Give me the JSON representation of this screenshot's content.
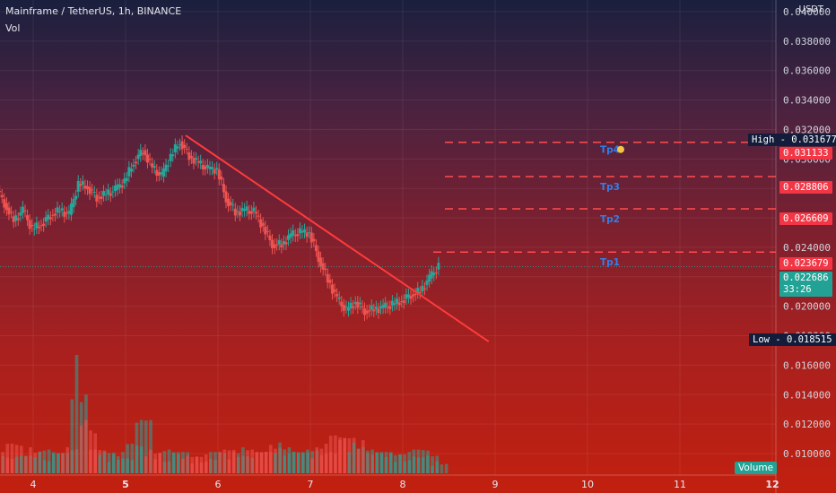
{
  "header": {
    "title": "Mainframe / TetherUS, 1h, BINANCE",
    "volume_label": "Vol"
  },
  "axis": {
    "currency": "USDT"
  },
  "price_axis_ticks": [
    "0.040000",
    "0.038000",
    "0.036000",
    "0.034000",
    "0.032000",
    "0.030000",
    "0.028000",
    "0.026000",
    "0.024000",
    "0.022000",
    "0.020000",
    "0.018000",
    "0.016000",
    "0.014000",
    "0.012000",
    "0.010000"
  ],
  "time_axis_ticks": [
    "4",
    "5",
    "6",
    "7",
    "8",
    "9",
    "10",
    "11",
    "12"
  ],
  "levels": [
    {
      "name": "Tp4",
      "value": "0.031133",
      "icon": "rocket-icon"
    },
    {
      "name": "Tp3",
      "value": "0.028806"
    },
    {
      "name": "Tp2",
      "value": "0.026609"
    },
    {
      "name": "Tp1",
      "value": "0.023679"
    }
  ],
  "markers": {
    "high": {
      "label": "High",
      "value": "0.031677"
    },
    "low": {
      "label": "Low",
      "value": "0.018515"
    },
    "current": {
      "value": "0.022686",
      "countdown": "33:26"
    }
  },
  "volume_badge": "Volume",
  "colors": {
    "up": "#26a69a",
    "down": "#ef5350",
    "level": "#ff4d4d",
    "trendline": "#ff3b3b",
    "tp_text": "#2f80ed"
  },
  "chart_data": {
    "type": "candlestick",
    "title": "Mainframe / TetherUS, 1h, BINANCE",
    "ylabel": "USDT",
    "ylim": [
      0.0095,
      0.0412
    ],
    "x_ticks": [
      "4",
      "5",
      "6",
      "7",
      "8",
      "9",
      "10",
      "11",
      "12"
    ],
    "series": [
      {
        "x": 3.6,
        "close": 0.0281
      },
      {
        "x": 3.7,
        "close": 0.027
      },
      {
        "x": 3.8,
        "close": 0.0258
      },
      {
        "x": 3.9,
        "close": 0.0265
      },
      {
        "x": 4.0,
        "close": 0.0252
      },
      {
        "x": 4.1,
        "close": 0.0256
      },
      {
        "x": 4.2,
        "close": 0.0262
      },
      {
        "x": 4.3,
        "close": 0.0265
      },
      {
        "x": 4.4,
        "close": 0.0262
      },
      {
        "x": 4.5,
        "close": 0.0283
      },
      {
        "x": 4.6,
        "close": 0.0281
      },
      {
        "x": 4.7,
        "close": 0.0274
      },
      {
        "x": 4.8,
        "close": 0.0276
      },
      {
        "x": 4.9,
        "close": 0.0279
      },
      {
        "x": 5.0,
        "close": 0.0285
      },
      {
        "x": 5.1,
        "close": 0.0298
      },
      {
        "x": 5.2,
        "close": 0.0306
      },
      {
        "x": 5.3,
        "close": 0.0294
      },
      {
        "x": 5.4,
        "close": 0.0288
      },
      {
        "x": 5.5,
        "close": 0.0302
      },
      {
        "x": 5.6,
        "close": 0.0312
      },
      {
        "x": 5.7,
        "close": 0.0302
      },
      {
        "x": 5.8,
        "close": 0.0297
      },
      {
        "x": 5.9,
        "close": 0.0293
      },
      {
        "x": 6.0,
        "close": 0.0293
      },
      {
        "x": 6.1,
        "close": 0.0273
      },
      {
        "x": 6.2,
        "close": 0.0264
      },
      {
        "x": 6.3,
        "close": 0.0265
      },
      {
        "x": 6.4,
        "close": 0.0264
      },
      {
        "x": 6.5,
        "close": 0.0254
      },
      {
        "x": 6.6,
        "close": 0.0242
      },
      {
        "x": 6.7,
        "close": 0.0242
      },
      {
        "x": 6.8,
        "close": 0.0248
      },
      {
        "x": 6.9,
        "close": 0.025
      },
      {
        "x": 7.0,
        "close": 0.025
      },
      {
        "x": 7.1,
        "close": 0.0233
      },
      {
        "x": 7.2,
        "close": 0.0218
      },
      {
        "x": 7.3,
        "close": 0.0205
      },
      {
        "x": 7.4,
        "close": 0.0197
      },
      {
        "x": 7.5,
        "close": 0.0203
      },
      {
        "x": 7.6,
        "close": 0.0197
      },
      {
        "x": 7.7,
        "close": 0.0198
      },
      {
        "x": 7.8,
        "close": 0.0199
      },
      {
        "x": 7.9,
        "close": 0.0201
      },
      {
        "x": 8.0,
        "close": 0.0204
      },
      {
        "x": 8.1,
        "close": 0.0208
      },
      {
        "x": 8.2,
        "close": 0.021
      },
      {
        "x": 8.3,
        "close": 0.0219
      },
      {
        "x": 8.4,
        "close": 0.0227
      }
    ],
    "volume_series": [
      {
        "x": 3.6,
        "v": 0.2
      },
      {
        "x": 3.7,
        "v": 0.18
      },
      {
        "x": 3.8,
        "v": 0.25
      },
      {
        "x": 3.9,
        "v": 0.15
      },
      {
        "x": 4.0,
        "v": 0.22
      },
      {
        "x": 4.1,
        "v": 0.18
      },
      {
        "x": 4.2,
        "v": 0.2
      },
      {
        "x": 4.3,
        "v": 0.17
      },
      {
        "x": 4.4,
        "v": 0.22
      },
      {
        "x": 4.5,
        "v": 1.0
      },
      {
        "x": 4.6,
        "v": 0.45
      },
      {
        "x": 4.7,
        "v": 0.2
      },
      {
        "x": 4.8,
        "v": 0.18
      },
      {
        "x": 4.9,
        "v": 0.16
      },
      {
        "x": 5.0,
        "v": 0.18
      },
      {
        "x": 5.1,
        "v": 0.25
      },
      {
        "x": 5.2,
        "v": 0.45
      },
      {
        "x": 5.3,
        "v": 0.2
      },
      {
        "x": 5.4,
        "v": 0.17
      },
      {
        "x": 5.5,
        "v": 0.2
      },
      {
        "x": 5.6,
        "v": 0.18
      },
      {
        "x": 5.7,
        "v": 0.15
      },
      {
        "x": 5.8,
        "v": 0.14
      },
      {
        "x": 5.9,
        "v": 0.16
      },
      {
        "x": 6.0,
        "v": 0.18
      },
      {
        "x": 6.1,
        "v": 0.2
      },
      {
        "x": 6.2,
        "v": 0.18
      },
      {
        "x": 6.3,
        "v": 0.22
      },
      {
        "x": 6.4,
        "v": 0.2
      },
      {
        "x": 6.5,
        "v": 0.18
      },
      {
        "x": 6.6,
        "v": 0.24
      },
      {
        "x": 6.7,
        "v": 0.26
      },
      {
        "x": 6.8,
        "v": 0.22
      },
      {
        "x": 6.9,
        "v": 0.18
      },
      {
        "x": 7.0,
        "v": 0.2
      },
      {
        "x": 7.1,
        "v": 0.22
      },
      {
        "x": 7.2,
        "v": 0.25
      },
      {
        "x": 7.3,
        "v": 0.32
      },
      {
        "x": 7.4,
        "v": 0.3
      },
      {
        "x": 7.5,
        "v": 0.26
      },
      {
        "x": 7.6,
        "v": 0.28
      },
      {
        "x": 7.7,
        "v": 0.2
      },
      {
        "x": 7.8,
        "v": 0.18
      },
      {
        "x": 7.9,
        "v": 0.17
      },
      {
        "x": 8.0,
        "v": 0.16
      },
      {
        "x": 8.1,
        "v": 0.18
      },
      {
        "x": 8.2,
        "v": 0.2
      },
      {
        "x": 8.3,
        "v": 0.15
      },
      {
        "x": 8.4,
        "v": 0.1
      }
    ],
    "trendline": {
      "from": {
        "x": 5.65,
        "y": 0.0316
      },
      "to": {
        "x": 8.93,
        "y": 0.0176
      }
    },
    "grid": true
  }
}
